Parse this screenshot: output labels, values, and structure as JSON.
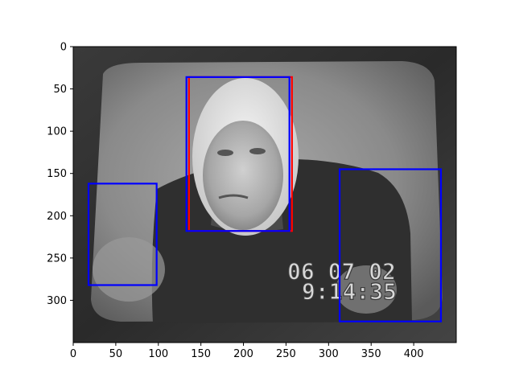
{
  "image": {
    "description_role": "photo of a CRT television showing an older man in clerical collar",
    "timestamp_date": "06 07 02",
    "timestamp_time": "9:14:35"
  },
  "axes": {
    "x_ticks": [
      "0",
      "50",
      "100",
      "150",
      "200",
      "250",
      "300",
      "350",
      "400"
    ],
    "y_ticks": [
      "0",
      "50",
      "100",
      "150",
      "200",
      "250",
      "300"
    ],
    "x_range": [
      0,
      450
    ],
    "y_range": [
      0,
      350
    ]
  },
  "boxes": [
    {
      "label": "red-box",
      "color": "#ff0000",
      "x0": 136,
      "y0": 36,
      "x1": 257,
      "y1": 218
    },
    {
      "label": "blue-box-face",
      "color": "#0000ff",
      "x0": 133,
      "y0": 36,
      "x1": 254,
      "y1": 218
    },
    {
      "label": "blue-box-left",
      "color": "#0000ff",
      "x0": 18,
      "y0": 162,
      "x1": 98,
      "y1": 282
    },
    {
      "label": "blue-box-right",
      "color": "#0000ff",
      "x0": 313,
      "y0": 145,
      "x1": 432,
      "y1": 325
    }
  ],
  "colors": {
    "box_red": "#ff0000",
    "box_blue": "#0000ff"
  }
}
